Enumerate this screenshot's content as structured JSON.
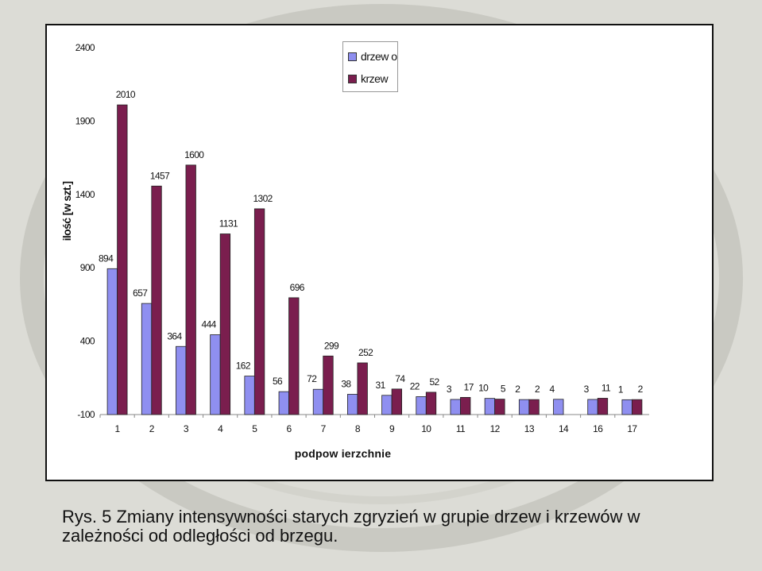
{
  "chart_data": {
    "type": "bar",
    "categories": [
      "1",
      "2",
      "3",
      "4",
      "5",
      "6",
      "7",
      "8",
      "9",
      "10",
      "11",
      "12",
      "13",
      "14",
      "16",
      "17"
    ],
    "series": [
      {
        "name": "drzewo",
        "color": "#8f8ff0",
        "values": [
          894,
          657,
          364,
          444,
          162,
          56,
          72,
          38,
          31,
          22,
          3,
          10,
          2,
          4,
          3,
          1
        ],
        "labels": [
          "894",
          "657",
          "364",
          "444",
          "162",
          "56",
          "72",
          "38",
          "31",
          "22",
          "3",
          "10",
          "2",
          "4",
          "3",
          "1"
        ]
      },
      {
        "name": "krzew",
        "color": "#7a1e4e",
        "values": [
          2010,
          1457,
          1600,
          1131,
          1302,
          696,
          299,
          252,
          74,
          52,
          17,
          5,
          2,
          null,
          11,
          2
        ],
        "labels": [
          "2010",
          "1457",
          "1600",
          "1131",
          "1302",
          "696",
          "299",
          "252",
          "74",
          "52",
          "17",
          "5",
          "2",
          "",
          "11",
          "2"
        ]
      }
    ],
    "legend_labels": [
      "drzew o",
      "krzew"
    ],
    "title": "",
    "xlabel": "podpow ierzchnie",
    "ylabel": "ilość [w szt.]",
    "yticks": [
      -100,
      400,
      900,
      1400,
      1900,
      2400
    ],
    "ytick_labels": [
      "-100",
      "400",
      "900",
      "1400",
      "1900",
      "2400"
    ],
    "ylim": [
      -100,
      2400
    ],
    "grid": false,
    "legend_position": "top-center"
  },
  "caption": {
    "line1": "Rys. 5 Zmiany intensywności starych zgryzień w grupie drzew i krzewów w",
    "line2": "zależności od odległości od brzegu."
  }
}
